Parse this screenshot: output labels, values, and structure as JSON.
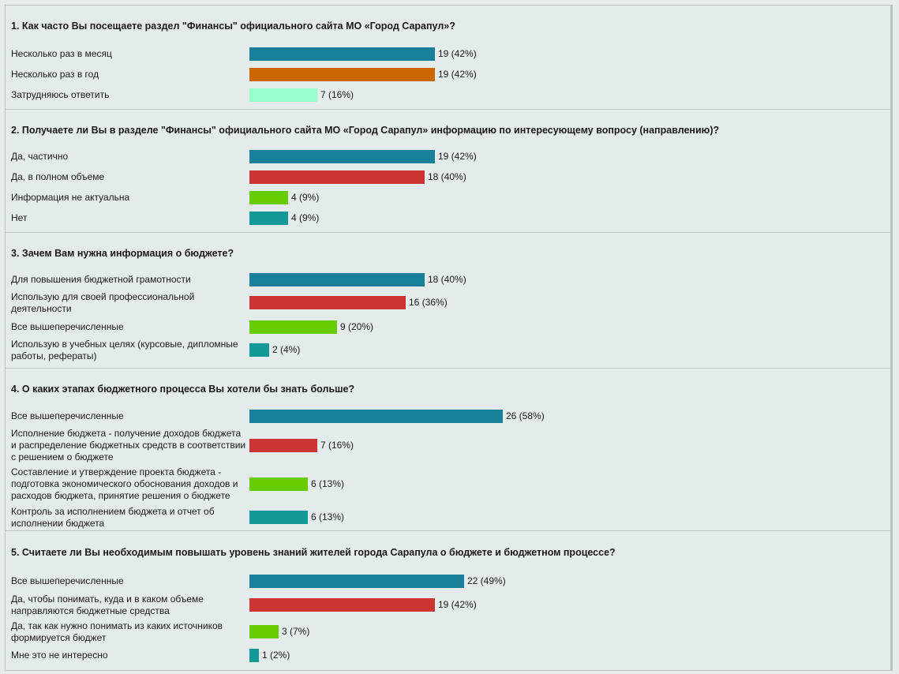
{
  "colors": {
    "blue": "#1a7f98",
    "orange": "#cc6600",
    "mint": "#99ffcc",
    "red": "#cc3333",
    "green": "#66cc00",
    "teal": "#159898"
  },
  "chart_data": [
    {
      "type": "bar",
      "orientation": "horizontal",
      "title": "1. Как часто Вы посещаете раздел \"Финансы\" официального сайта МО «Город Сарапул»?",
      "categories": [
        "Несколько раз в месяц",
        "Несколько раз в год",
        "Затрудняюсь ответить"
      ],
      "values": [
        19,
        19,
        7
      ],
      "labels": [
        "19 (42%)",
        "19 (42%)",
        "7 (16%)"
      ],
      "colors": [
        "blue",
        "orange",
        "mint"
      ]
    },
    {
      "type": "bar",
      "orientation": "horizontal",
      "title": "2. Получаете ли Вы в разделе \"Финансы\" официального сайта МО «Город Сарапул» информацию по интересующему вопросу (направлению)?",
      "categories": [
        "Да, частично",
        "Да, в полном объеме",
        "Информация не актуальна",
        "Нет"
      ],
      "values": [
        19,
        18,
        4,
        4
      ],
      "labels": [
        "19 (42%)",
        "18 (40%)",
        "4 (9%)",
        "4 (9%)"
      ],
      "colors": [
        "blue",
        "red",
        "green",
        "teal"
      ]
    },
    {
      "type": "bar",
      "orientation": "horizontal",
      "title": "3. Зачем Вам нужна информация о бюджете?",
      "categories": [
        "Для повышения бюджетной грамотности",
        "Использую для своей профессиональной деятельности",
        "Все вышеперечисленные",
        "Использую в учебных целях (курсовые, дипломные работы, рефераты)"
      ],
      "values": [
        18,
        16,
        9,
        2
      ],
      "labels": [
        "18 (40%)",
        "16 (36%)",
        "9 (20%)",
        "2 (4%)"
      ],
      "colors": [
        "blue",
        "red",
        "green",
        "teal"
      ]
    },
    {
      "type": "bar",
      "orientation": "horizontal",
      "title": "4. О каких этапах бюджетного процесса Вы хотели бы знать больше?",
      "categories": [
        "Все вышеперечисленные",
        "Исполнение бюджета - получение доходов бюджета и распределение бюджетных средств в соответствии с решением о бюджете",
        "Составление и утверждение проекта бюджета - подготовка экономического обоснования доходов и расходов бюджета, принятие решения о бюджете",
        "Контроль за исполнением бюджета и отчет об исполнении бюджета"
      ],
      "values": [
        26,
        7,
        6,
        6
      ],
      "labels": [
        "26 (58%)",
        "7 (16%)",
        "6 (13%)",
        "6 (13%)"
      ],
      "colors": [
        "blue",
        "red",
        "green",
        "teal"
      ]
    },
    {
      "type": "bar",
      "orientation": "horizontal",
      "title": "5. Считаете ли Вы необходимым повышать уровень знаний жителей города Сарапула о бюджете и бюджетном процессе?",
      "categories": [
        "Все вышеперечисленные",
        "Да, чтобы понимать, куда и в каком объеме направляются бюджетные средства",
        "Да, так как нужно понимать из каких источников формируется бюджет",
        "Мне это не интересно"
      ],
      "values": [
        22,
        19,
        3,
        1
      ],
      "labels": [
        "22 (49%)",
        "19 (42%)",
        "3 (7%)",
        "1 (2%)"
      ],
      "colors": [
        "blue",
        "red",
        "green",
        "teal"
      ]
    }
  ]
}
